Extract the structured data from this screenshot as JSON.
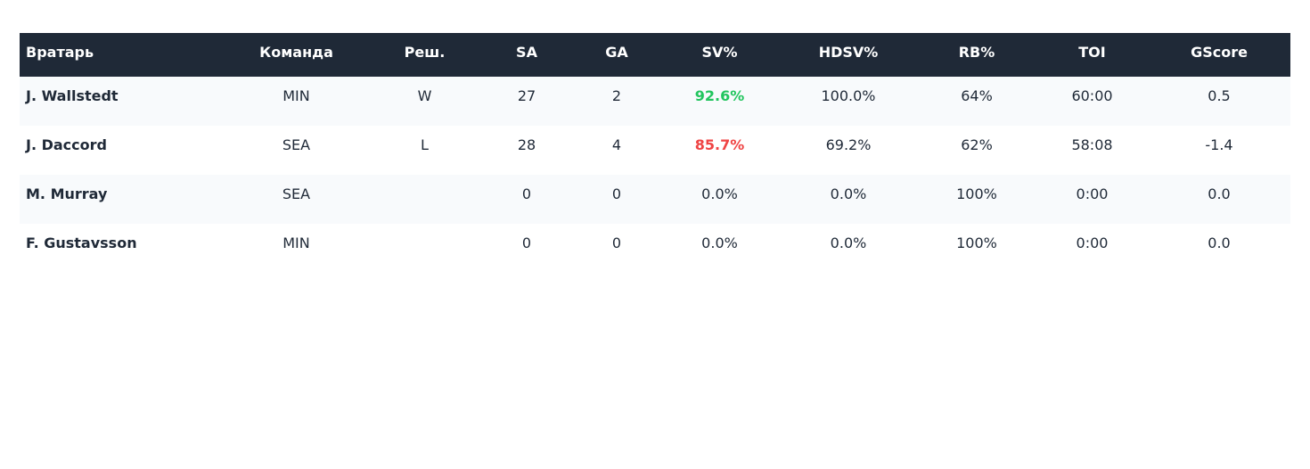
{
  "colors": {
    "header_bg": "#1f2937",
    "header_text": "#ffffff",
    "row_alt_bg": "#f8fafc",
    "text": "#1f2937",
    "sv_good": "#22c55e",
    "sv_bad": "#ef4444"
  },
  "table": {
    "headers": [
      "Вратарь",
      "Команда",
      "Реш.",
      "SA",
      "GA",
      "SV%",
      "HDSV%",
      "RB%",
      "TOI",
      "GScore"
    ],
    "rows": [
      {
        "goalie": "J. Wallstedt",
        "team": "MIN",
        "decision": "W",
        "sa": "27",
        "ga": "2",
        "sv": "92.6%",
        "sv_status": "good",
        "hdsv": "100.0%",
        "rb": "64%",
        "toi": "60:00",
        "gscore": "0.5"
      },
      {
        "goalie": "J. Daccord",
        "team": "SEA",
        "decision": "L",
        "sa": "28",
        "ga": "4",
        "sv": "85.7%",
        "sv_status": "bad",
        "hdsv": "69.2%",
        "rb": "62%",
        "toi": "58:08",
        "gscore": "-1.4"
      },
      {
        "goalie": "M. Murray",
        "team": "SEA",
        "decision": "",
        "sa": "0",
        "ga": "0",
        "sv": "0.0%",
        "sv_status": "normal",
        "hdsv": "0.0%",
        "rb": "100%",
        "toi": "0:00",
        "gscore": "0.0"
      },
      {
        "goalie": "F. Gustavsson",
        "team": "MIN",
        "decision": "",
        "sa": "0",
        "ga": "0",
        "sv": "0.0%",
        "sv_status": "normal",
        "hdsv": "0.0%",
        "rb": "100%",
        "toi": "0:00",
        "gscore": "0.0"
      }
    ]
  }
}
